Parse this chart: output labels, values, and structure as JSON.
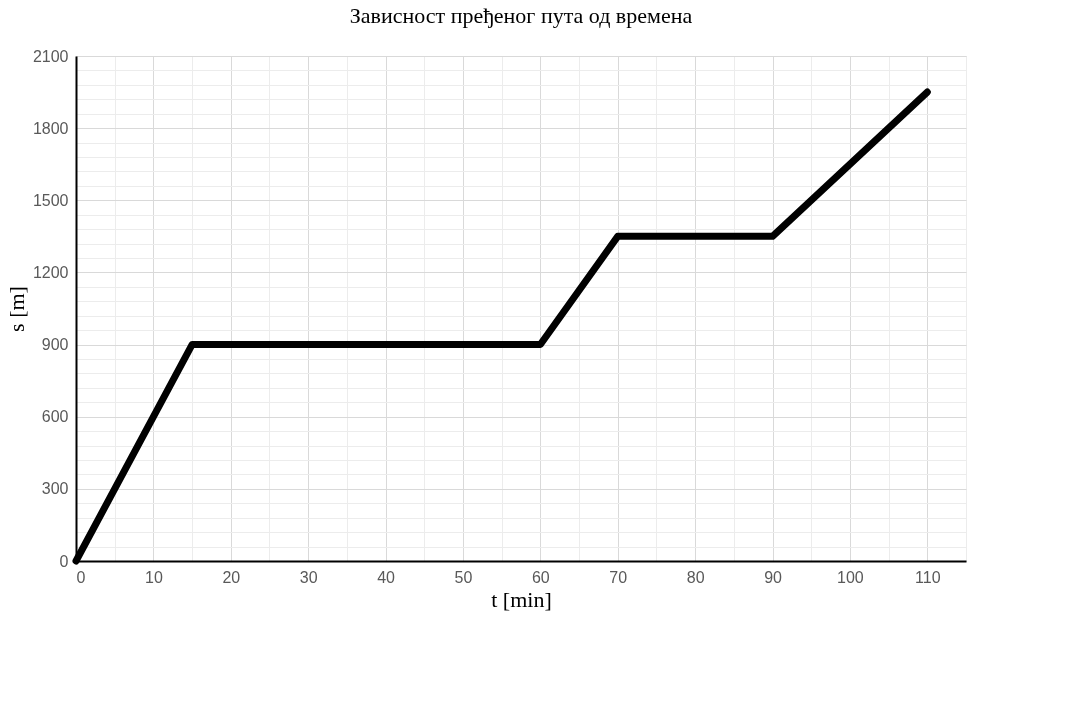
{
  "chart_data": {
    "type": "line",
    "title": "Зависност пређеног пута од времена",
    "xlabel": "t [min]",
    "ylabel": "s [m]",
    "x": [
      0,
      15,
      60,
      70,
      90,
      110
    ],
    "series": [
      {
        "color": "#000000",
        "values": [
          0,
          900,
          900,
          1350,
          1350,
          1950
        ]
      }
    ],
    "xlim": [
      0,
      115
    ],
    "xticks": [
      0,
      10,
      20,
      30,
      40,
      50,
      60,
      70,
      80,
      90,
      100,
      110
    ],
    "ylim": [
      0,
      2100
    ],
    "yticks": [
      0,
      300,
      600,
      900,
      1200,
      1500,
      1800,
      2100
    ],
    "grid": true,
    "marker": "none",
    "line_style": "solid",
    "legend": false
  }
}
